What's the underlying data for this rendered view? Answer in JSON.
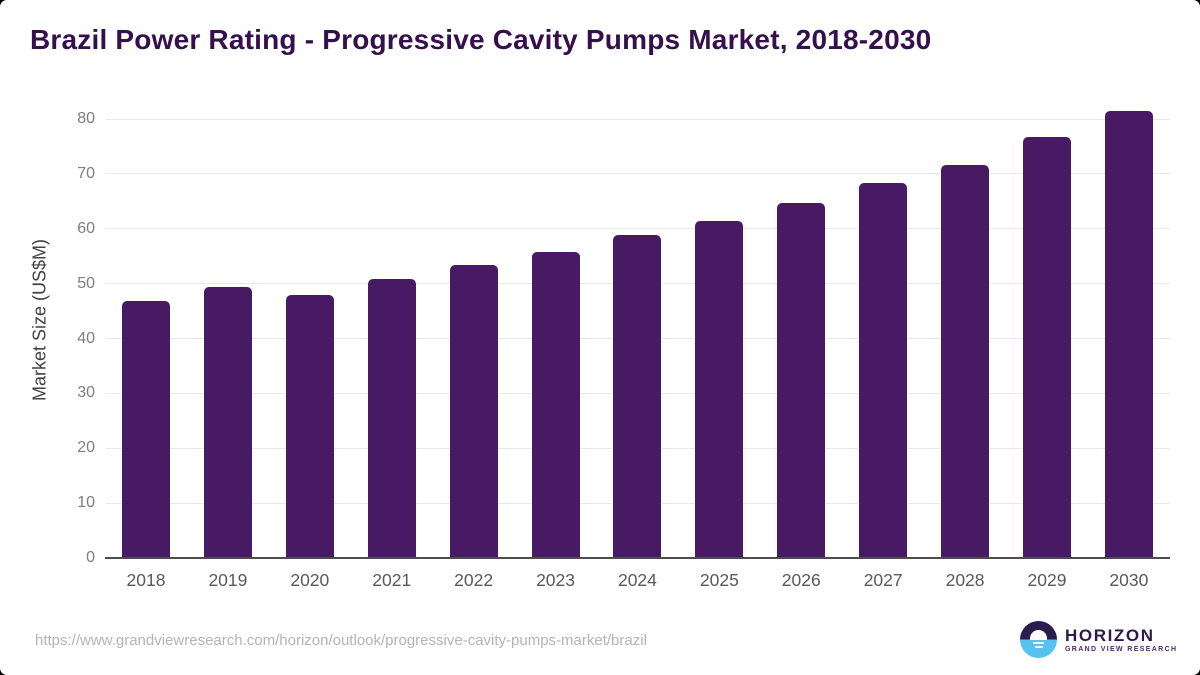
{
  "title": "Brazil Power Rating - Progressive Cavity Pumps Market, 2018-2030",
  "chart_data": {
    "type": "bar",
    "categories": [
      "2018",
      "2019",
      "2020",
      "2021",
      "2022",
      "2023",
      "2024",
      "2025",
      "2026",
      "2027",
      "2028",
      "2029",
      "2030"
    ],
    "values": [
      46.9,
      49.4,
      48.0,
      50.8,
      53.4,
      55.8,
      58.9,
      61.5,
      64.7,
      68.4,
      71.7,
      76.7,
      81.4
    ],
    "title": "Brazil Power Rating - Progressive Cavity Pumps Market, 2018-2030",
    "xlabel": "",
    "ylabel": "Market Size (US$M)",
    "ylim": [
      0,
      80
    ],
    "yticks": [
      0,
      10,
      20,
      30,
      40,
      50,
      60,
      70,
      80
    ],
    "grid": true,
    "legend_position": "none",
    "bar_color": "#471a63"
  },
  "footer": {
    "source_url": "https://www.grandviewresearch.com/horizon/outlook/progressive-cavity-pumps-market/brazil",
    "logo_title": "HORIZON",
    "logo_subtitle": "GRAND VIEW RESEARCH"
  },
  "colors": {
    "title_text": "#35104d",
    "bar": "#471a63",
    "gridline": "#e9e9e9",
    "axis_line": "#4d4d4f",
    "x_tick_text": "#58595b",
    "y_tick_text": "#7d7e81",
    "y_axis_title_text": "#414042",
    "source_url_text": "#b4b4b5",
    "logo_dark_half": "#2b1c4e",
    "logo_blue_half": "#57c2f0"
  }
}
